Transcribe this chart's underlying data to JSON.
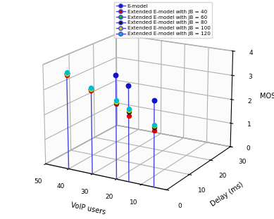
{
  "xlabel": "VoIP users",
  "ylabel": "Delay (ms)",
  "zlabel": "MOS",
  "voip_users": [
    40,
    30,
    20,
    15,
    5
  ],
  "delay_fixed": 0,
  "e_model_mos": [
    3.8,
    3.35,
    4.05,
    3.75,
    3.35
  ],
  "jb_values": [
    40,
    60,
    80,
    100,
    120
  ],
  "jb_mos": {
    "40": [
      3.75,
      3.3,
      2.95,
      2.6,
      2.2
    ],
    "60": [
      3.8,
      3.35,
      3.0,
      2.75,
      2.35
    ],
    "80": [
      3.8,
      3.35,
      3.0,
      2.75,
      2.35
    ],
    "100": [
      3.8,
      3.35,
      3.05,
      2.8,
      2.38
    ],
    "120": [
      3.85,
      3.42,
      3.1,
      2.85,
      2.42
    ]
  },
  "delay_axis_max": 30,
  "voip_axis_max": 50,
  "voip_axis_min": 0,
  "mos_min": 0,
  "mos_max": 4,
  "line_color": "#4444dd",
  "e_model_color": "#1111cc",
  "jb_colors": {
    "40": "#dd0000",
    "60": "#00bb00",
    "80": "#111111",
    "100": "#cccc00",
    "120": "#00bbcc"
  },
  "legend_labels": [
    "E-model",
    "Extended E-model with JB = 40",
    "Extended E-model with JB = 60",
    "Extended E-model with JB = 80",
    "Extended E-model with JB = 100",
    "Extended E-model with JB = 120"
  ],
  "elev": 18,
  "azim": -60
}
